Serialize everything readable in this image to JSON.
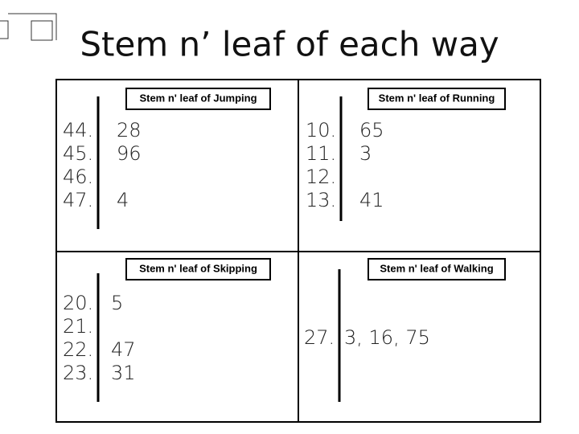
{
  "title": "Stem n’ leaf of each way",
  "panels": [
    {
      "label": "Stem n' leaf of Jumping",
      "rows": [
        {
          "stem": "44.",
          "leaf": "28"
        },
        {
          "stem": "45.",
          "leaf": "96"
        },
        {
          "stem": "46."
        },
        {
          "stem": "47.",
          "leaf": "4"
        }
      ]
    },
    {
      "label": "Stem n' leaf of Running",
      "rows": [
        {
          "stem": "10.",
          "leaf": "65"
        },
        {
          "stem": "11.",
          "leaf": "3"
        },
        {
          "stem": "12."
        },
        {
          "stem": "13.",
          "leaf": "41"
        }
      ]
    },
    {
      "label": "Stem n' leaf of Skipping",
      "rows": [
        {
          "stem": "20.",
          "leaf": "5"
        },
        {
          "stem": "21."
        },
        {
          "stem": "22.",
          "leaf": "47"
        },
        {
          "stem": "23.",
          "leaf": "31"
        }
      ]
    },
    {
      "label": "Stem n' leaf of Walking",
      "rows": [
        {
          "stem": "27.",
          "leaf": "3, 16, 75"
        }
      ]
    }
  ]
}
